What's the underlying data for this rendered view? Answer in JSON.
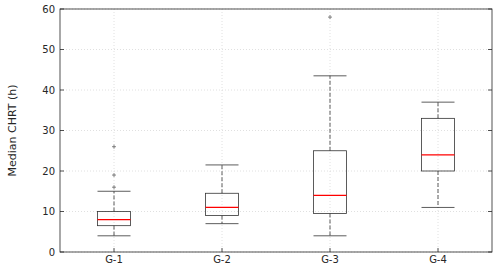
{
  "chart_data": {
    "type": "box",
    "y_label": "Median CHRT (h)",
    "categories": [
      "G-1",
      "G-2",
      "G-3",
      "G-4"
    ],
    "boxes": [
      {
        "whisker_low": 4,
        "q1": 6.5,
        "median": 8,
        "q3": 10,
        "whisker_high": 15,
        "outliers": [
          16,
          19,
          26
        ]
      },
      {
        "whisker_low": 7,
        "q1": 9,
        "median": 11,
        "q3": 14.5,
        "whisker_high": 21.5,
        "outliers": []
      },
      {
        "whisker_low": 4,
        "q1": 9.5,
        "median": 14,
        "q3": 25,
        "whisker_high": 43.5,
        "outliers": [
          58
        ]
      },
      {
        "whisker_low": 11,
        "q1": 20,
        "median": 24,
        "q3": 33,
        "whisker_high": 37,
        "outliers": []
      }
    ],
    "color": "#333333",
    "ylim": [
      0,
      60
    ],
    "yticks": [
      0,
      10,
      20,
      30,
      40,
      50,
      60
    ],
    "grid": true
  }
}
